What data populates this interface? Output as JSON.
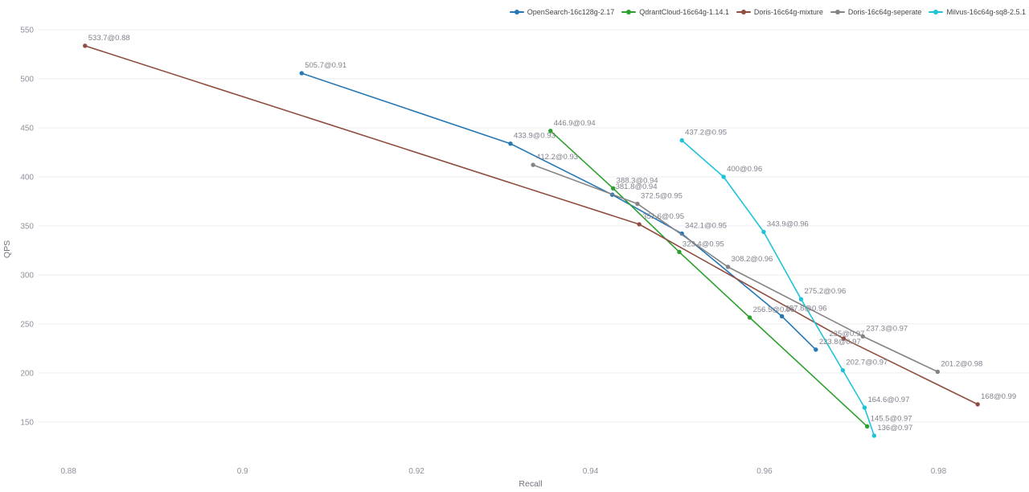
{
  "chart_data": {
    "type": "line",
    "title": "",
    "xlabel": "Recall",
    "ylabel": "QPS",
    "grid": "horizontal-only",
    "legend_position": "top-right",
    "x_ticks": [
      "0.88",
      "0.9",
      "0.92",
      "0.94",
      "0.96",
      "0.98"
    ],
    "x_tick_values": [
      0.88,
      0.9,
      0.92,
      0.94,
      0.96,
      0.98
    ],
    "y_ticks": [
      150,
      200,
      250,
      300,
      350,
      400,
      450,
      500,
      550
    ],
    "xlim": [
      0.8749,
      0.9904
    ],
    "ylim": [
      113,
      564
    ],
    "series": [
      {
        "name": "OpenSearch-16c128g-2.17",
        "color": "#2577b5",
        "points": [
          {
            "recall": 0.9068,
            "qps": 505.7,
            "label": "505.7@0.91"
          },
          {
            "recall": 0.9308,
            "qps": 433.9,
            "label": "433.9@0.93"
          },
          {
            "recall": 0.9425,
            "qps": 381.8,
            "label": "381.8@0.94"
          },
          {
            "recall": 0.9505,
            "qps": 342.1,
            "label": "342.1@0.95"
          },
          {
            "recall": 0.962,
            "qps": 257.8,
            "label": "257.8@0.96"
          },
          {
            "recall": 0.9659,
            "qps": 223.8,
            "label": "223.8@0.97"
          }
        ]
      },
      {
        "name": "QdrantCloud-16c64g-1.14.1",
        "color": "#2ca02c",
        "points": [
          {
            "recall": 0.9354,
            "qps": 446.9,
            "label": "446.9@0.94"
          },
          {
            "recall": 0.9426,
            "qps": 388.3,
            "label": "388.3@0.94"
          },
          {
            "recall": 0.9502,
            "qps": 323.4,
            "label": "323.4@0.95"
          },
          {
            "recall": 0.9583,
            "qps": 256.5,
            "label": "256.5@0.96"
          },
          {
            "recall": 0.9718,
            "qps": 145.5,
            "label": "145.5@0.97"
          }
        ]
      },
      {
        "name": "Doris-16c64g-mixture",
        "color": "#8f4e3f",
        "points": [
          {
            "recall": 0.8819,
            "qps": 533.7,
            "label": "533.7@0.88"
          },
          {
            "recall": 0.9456,
            "qps": 351.6,
            "label": "351.6@0.95"
          },
          {
            "recall": 0.9691,
            "qps": 235,
            "label": "235@0.97",
            "label_dx": -18,
            "label_dy": -3
          },
          {
            "recall": 0.9845,
            "qps": 168,
            "label": "168@0.99"
          }
        ]
      },
      {
        "name": "Doris-16c64g-seperate",
        "color": "#848484",
        "points": [
          {
            "recall": 0.9334,
            "qps": 412.2,
            "label": "412.2@0.93"
          },
          {
            "recall": 0.9454,
            "qps": 372.5,
            "label": "372.5@0.95"
          },
          {
            "recall": 0.9558,
            "qps": 308.2,
            "label": "308.2@0.96"
          },
          {
            "recall": 0.9713,
            "qps": 237.3,
            "label": "237.3@0.97"
          },
          {
            "recall": 0.9799,
            "qps": 201.2,
            "label": "201.2@0.98"
          }
        ]
      },
      {
        "name": "Milvus-16c64g-sq8-2.5.1",
        "color": "#1fc3d9",
        "points": [
          {
            "recall": 0.9505,
            "qps": 437.2,
            "label": "437.2@0.95"
          },
          {
            "recall": 0.9553,
            "qps": 400,
            "label": "400@0.96"
          },
          {
            "recall": 0.9599,
            "qps": 343.9,
            "label": "343.9@0.96"
          },
          {
            "recall": 0.9642,
            "qps": 275.2,
            "label": "275.2@0.96"
          },
          {
            "recall": 0.969,
            "qps": 202.7,
            "label": "202.7@0.97"
          },
          {
            "recall": 0.9715,
            "qps": 164.6,
            "label": "164.6@0.97"
          },
          {
            "recall": 0.9726,
            "qps": 136,
            "label": "136@0.97"
          }
        ]
      }
    ]
  }
}
